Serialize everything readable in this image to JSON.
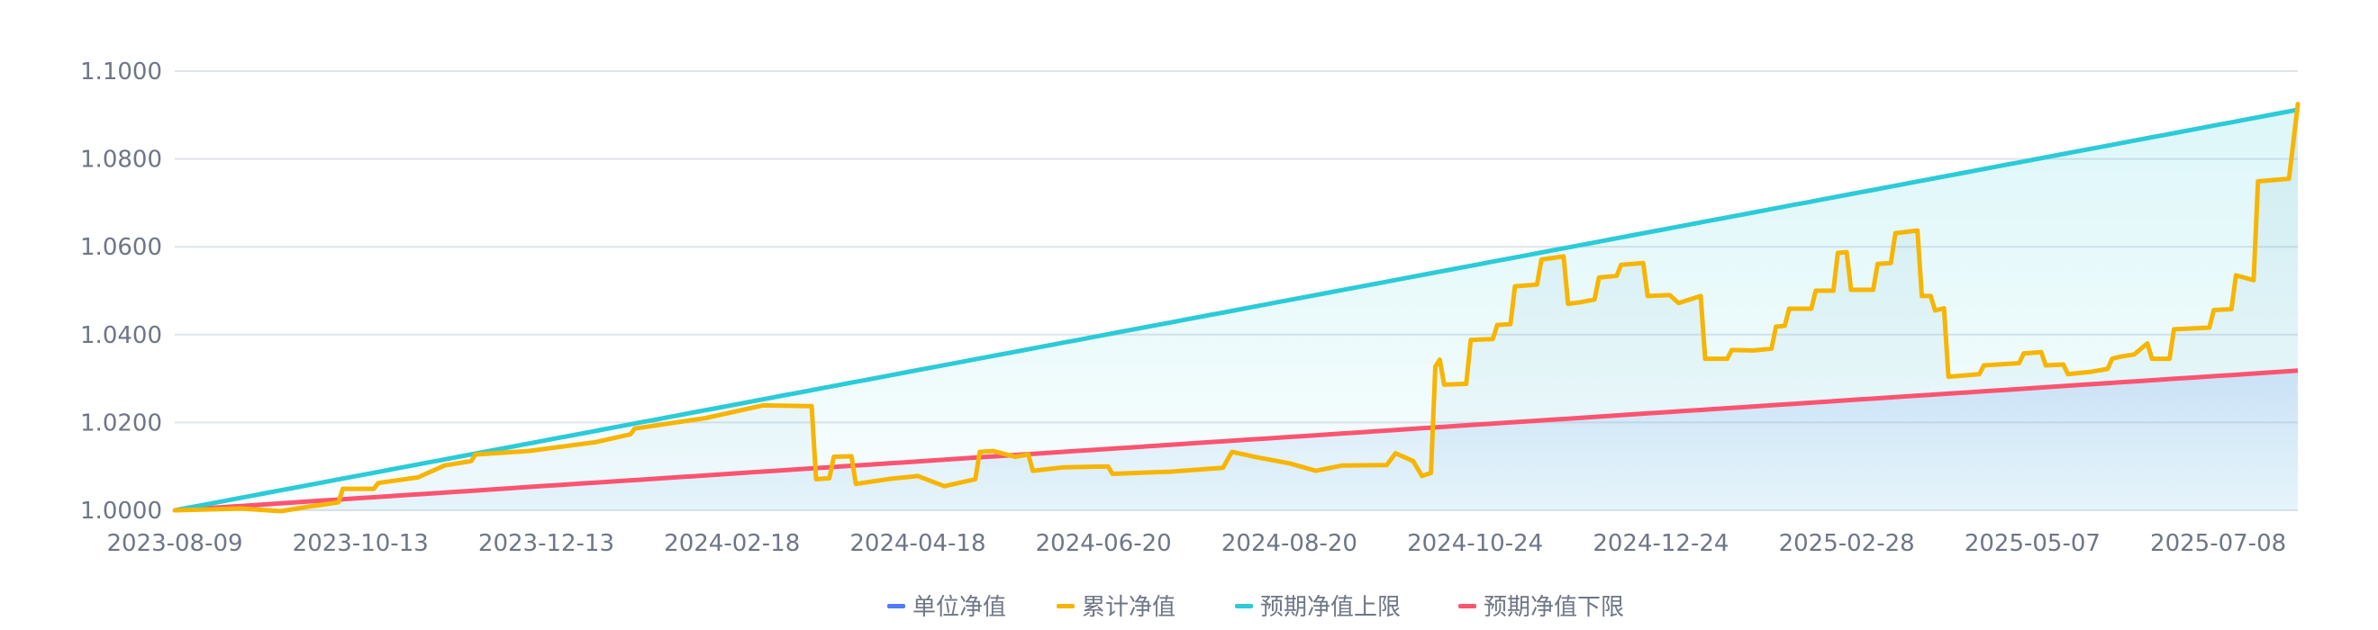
{
  "chart_data": {
    "type": "line",
    "title": "",
    "xlabel": "",
    "ylabel": "",
    "ylim": [
      1.0,
      1.1
    ],
    "xlim": [
      0,
      480
    ],
    "grid": true,
    "legend_position": "bottom-center",
    "y_ticks": [
      "1.0000",
      "1.0200",
      "1.0400",
      "1.0600",
      "1.0800",
      "1.1000"
    ],
    "y_tick_values": [
      1.0,
      1.02,
      1.04,
      1.06,
      1.08,
      1.1
    ],
    "x_ticks": [
      "2023-08-09",
      "2023-10-13",
      "2023-12-13",
      "2024-02-18",
      "2024-04-18",
      "2024-06-20",
      "2024-08-20",
      "2024-10-24",
      "2024-12-24",
      "2025-02-28",
      "2025-05-07",
      "2025-07-08"
    ],
    "x_tick_index": [
      0,
      42,
      84,
      126,
      168,
      210,
      252,
      294,
      336,
      378,
      420,
      462
    ],
    "legend": [
      "单位净值",
      "累计净值",
      "预期净值上限",
      "预期净值下限"
    ],
    "series": [
      {
        "name": "单位净值",
        "color": "#4f7cf7",
        "points": []
      },
      {
        "name": "累计净值",
        "color": "#f7b500",
        "points": [
          [
            0,
            1.0
          ],
          [
            15,
            1.0004
          ],
          [
            24,
            0.9998
          ],
          [
            30,
            1.0008
          ],
          [
            37,
            1.0018
          ],
          [
            38,
            1.0049
          ],
          [
            45,
            1.0049
          ],
          [
            46,
            1.0062
          ],
          [
            55,
            1.0075
          ],
          [
            61,
            1.0102
          ],
          [
            67,
            1.0112
          ],
          [
            68,
            1.0127
          ],
          [
            80,
            1.0135
          ],
          [
            95,
            1.0155
          ],
          [
            103,
            1.0173
          ],
          [
            104,
            1.0186
          ],
          [
            120,
            1.021
          ],
          [
            133,
            1.0239
          ],
          [
            144,
            1.0237
          ],
          [
            145,
            1.0071
          ],
          [
            148,
            1.0073
          ],
          [
            149,
            1.0122
          ],
          [
            153,
            1.0123
          ],
          [
            154,
            1.006
          ],
          [
            162,
            1.0072
          ],
          [
            168,
            1.0078
          ],
          [
            174,
            1.0055
          ],
          [
            181,
            1.0071
          ],
          [
            182,
            1.0133
          ],
          [
            185,
            1.0135
          ],
          [
            190,
            1.0122
          ],
          [
            193,
            1.0127
          ],
          [
            194,
            1.009
          ],
          [
            201,
            1.0098
          ],
          [
            211,
            1.01
          ],
          [
            212,
            1.0083
          ],
          [
            225,
            1.0088
          ],
          [
            237,
            1.0097
          ],
          [
            239,
            1.0133
          ],
          [
            245,
            1.012
          ],
          [
            252,
            1.0107
          ],
          [
            258,
            1.009
          ],
          [
            264,
            1.0102
          ],
          [
            274,
            1.0103
          ],
          [
            276,
            1.013
          ],
          [
            280,
            1.0112
          ],
          [
            282,
            1.0078
          ],
          [
            284,
            1.0085
          ],
          [
            285,
            1.0327
          ],
          [
            286,
            1.0343
          ],
          [
            287,
            1.0286
          ],
          [
            292,
            1.0288
          ],
          [
            293,
            1.0388
          ],
          [
            298,
            1.039
          ],
          [
            299,
            1.0422
          ],
          [
            302,
            1.0424
          ],
          [
            303,
            1.051
          ],
          [
            308,
            1.0514
          ],
          [
            309,
            1.0571
          ],
          [
            314,
            1.0578
          ],
          [
            315,
            1.047
          ],
          [
            318,
            1.0474
          ],
          [
            319,
            1.0476
          ],
          [
            321,
            1.048
          ],
          [
            322,
            1.053
          ],
          [
            326,
            1.0534
          ],
          [
            327,
            1.0559
          ],
          [
            332,
            1.0563
          ],
          [
            333,
            1.0488
          ],
          [
            338,
            1.049
          ],
          [
            340,
            1.0472
          ],
          [
            345,
            1.0488
          ],
          [
            346,
            1.0345
          ],
          [
            351,
            1.0345
          ],
          [
            352,
            1.0365
          ],
          [
            357,
            1.0364
          ],
          [
            361,
            1.0368
          ],
          [
            362,
            1.0418
          ],
          [
            364,
            1.042
          ],
          [
            365,
            1.0459
          ],
          [
            370,
            1.0459
          ],
          [
            371,
            1.05
          ],
          [
            375,
            1.05
          ],
          [
            376,
            1.0586
          ],
          [
            378,
            1.0588
          ],
          [
            379,
            1.0502
          ],
          [
            384,
            1.0502
          ],
          [
            385,
            1.0561
          ],
          [
            388,
            1.0563
          ],
          [
            389,
            1.0631
          ],
          [
            394,
            1.0637
          ],
          [
            395,
            1.0488
          ],
          [
            397,
            1.0488
          ],
          [
            398,
            1.0455
          ],
          [
            400,
            1.046
          ],
          [
            401,
            1.0304
          ],
          [
            408,
            1.031
          ],
          [
            409,
            1.033
          ],
          [
            417,
            1.0335
          ],
          [
            418,
            1.0357
          ],
          [
            422,
            1.036
          ],
          [
            423,
            1.033
          ],
          [
            427,
            1.0332
          ],
          [
            428,
            1.031
          ],
          [
            433,
            1.0315
          ],
          [
            437,
            1.0322
          ],
          [
            438,
            1.0345
          ],
          [
            440,
            1.035
          ],
          [
            443,
            1.0355
          ],
          [
            446,
            1.038
          ],
          [
            447,
            1.0345
          ],
          [
            451,
            1.0345
          ],
          [
            452,
            1.0412
          ],
          [
            460,
            1.0416
          ],
          [
            461,
            1.0456
          ],
          [
            465,
            1.0458
          ],
          [
            466,
            1.0535
          ],
          [
            470,
            1.0524
          ],
          [
            471,
            1.0749
          ],
          [
            478,
            1.0755
          ],
          [
            480,
            1.0925
          ]
        ]
      },
      {
        "name": "预期净值上限",
        "color": "#2bcbd8",
        "start": 1.0,
        "end": 1.0912
      },
      {
        "name": "预期净值下限",
        "color": "#fb5470",
        "start": 1.0,
        "end": 1.0318
      }
    ]
  }
}
